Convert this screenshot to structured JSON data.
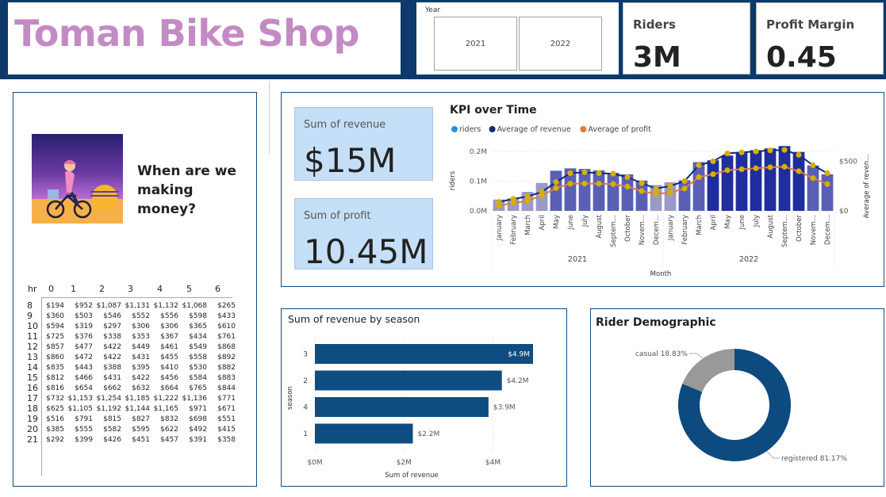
{
  "header": {
    "title": "Toman Bike Shop",
    "year_slicer": {
      "label": "Year",
      "options": [
        "2021",
        "2022"
      ]
    },
    "riders": {
      "label": "Riders",
      "value": "3M"
    },
    "profit_margin": {
      "label": "Profit Margin",
      "value": "0.45"
    }
  },
  "left_panel": {
    "heading_line1": "When are we",
    "heading_line2": "making money?",
    "illustration": "cyclist-sunset-icon",
    "heatmap": {
      "corner_label": "hr",
      "columns": [
        "0",
        "1",
        "2",
        "3",
        "4",
        "5",
        "6"
      ],
      "rows": [
        {
          "hr": "8",
          "values": [
            "$194",
            "$952",
            "$1,087",
            "$1,131",
            "$1,132",
            "$1,068",
            "$265"
          ]
        },
        {
          "hr": "9",
          "values": [
            "$360",
            "$503",
            "$546",
            "$552",
            "$556",
            "$598",
            "$433"
          ]
        },
        {
          "hr": "10",
          "values": [
            "$594",
            "$319",
            "$297",
            "$306",
            "$306",
            "$365",
            "$610"
          ]
        },
        {
          "hr": "11",
          "values": [
            "$725",
            "$376",
            "$338",
            "$353",
            "$367",
            "$434",
            "$761"
          ]
        },
        {
          "hr": "12",
          "values": [
            "$857",
            "$477",
            "$422",
            "$449",
            "$461",
            "$549",
            "$868"
          ]
        },
        {
          "hr": "13",
          "values": [
            "$860",
            "$472",
            "$422",
            "$431",
            "$455",
            "$558",
            "$892"
          ]
        },
        {
          "hr": "14",
          "values": [
            "$835",
            "$443",
            "$388",
            "$395",
            "$410",
            "$530",
            "$882"
          ]
        },
        {
          "hr": "15",
          "values": [
            "$812",
            "$466",
            "$431",
            "$422",
            "$456",
            "$584",
            "$883"
          ]
        },
        {
          "hr": "16",
          "values": [
            "$816",
            "$654",
            "$662",
            "$632",
            "$664",
            "$765",
            "$844"
          ]
        },
        {
          "hr": "17",
          "values": [
            "$732",
            "$1,153",
            "$1,254",
            "$1,185",
            "$1,222",
            "$1,136",
            "$771"
          ]
        },
        {
          "hr": "18",
          "values": [
            "$625",
            "$1,105",
            "$1,192",
            "$1,144",
            "$1,165",
            "$971",
            "$671"
          ]
        },
        {
          "hr": "19",
          "values": [
            "$516",
            "$791",
            "$815",
            "$827",
            "$832",
            "$698",
            "$551"
          ]
        },
        {
          "hr": "20",
          "values": [
            "$385",
            "$555",
            "$582",
            "$595",
            "$622",
            "$492",
            "$415"
          ]
        },
        {
          "hr": "21",
          "values": [
            "$292",
            "$399",
            "$426",
            "$451",
            "$457",
            "$391",
            "$358"
          ]
        }
      ]
    }
  },
  "revenue_card": {
    "label": "Sum of revenue",
    "value": "$15M"
  },
  "profit_card": {
    "label": "Sum of profit",
    "value": "10.45M"
  },
  "colors": {
    "topbar": "#0e3a6b",
    "title": "#c48ac4",
    "bar_dark": "#0f4c81",
    "riders_light": "#9a9ac8",
    "riders_dark": "#1f2e9c",
    "revenue_line": "#15297a",
    "profit_line": "#e07a3c",
    "marker": "#d4b000",
    "donut_registered": "#0c4a80",
    "donut_casual": "#999999"
  },
  "chart_data": [
    {
      "type": "bar",
      "title": "KPI over Time",
      "legend": [
        "riders",
        "Average of revenue",
        "Average of profit"
      ],
      "legend_placement": "top-left",
      "xlabel": "Month",
      "ylabel": "riders",
      "y2label": "Average of reven...",
      "ylim": [
        0,
        0.2
      ],
      "y_ticks": [
        "0.0M",
        "0.1M",
        "0.2M"
      ],
      "y2lim": [
        0,
        600
      ],
      "y2_ticks": [
        "$0",
        "$500"
      ],
      "groups": [
        "2021",
        "2022"
      ],
      "categories": [
        "January",
        "February",
        "March",
        "April",
        "May",
        "June",
        "July",
        "August",
        "Septem...",
        "October",
        "Novem...",
        "Decem...",
        "January",
        "February",
        "March",
        "April",
        "May",
        "June",
        "July",
        "August",
        "Septem...",
        "October",
        "Novem...",
        "Decem..."
      ],
      "series": [
        {
          "name": "riders",
          "unit": "M",
          "values": [
            0.038,
            0.042,
            0.064,
            0.094,
            0.135,
            0.143,
            0.141,
            0.136,
            0.128,
            0.123,
            0.102,
            0.087,
            0.096,
            0.103,
            0.164,
            0.17,
            0.186,
            0.196,
            0.204,
            0.21,
            0.218,
            0.198,
            0.153,
            0.123
          ]
        },
        {
          "name": "Average of revenue",
          "unit": "$",
          "values": [
            90,
            120,
            145,
            190,
            290,
            380,
            390,
            380,
            375,
            340,
            280,
            225,
            250,
            300,
            460,
            500,
            580,
            590,
            600,
            610,
            615,
            565,
            460,
            380
          ]
        },
        {
          "name": "Average of profit",
          "unit": "$",
          "values": [
            50,
            80,
            100,
            155,
            230,
            275,
            275,
            275,
            270,
            245,
            200,
            170,
            185,
            225,
            340,
            370,
            410,
            420,
            430,
            440,
            445,
            400,
            330,
            270
          ]
        }
      ]
    },
    {
      "type": "bar",
      "orientation": "horizontal",
      "title": "Sum of revenue by season",
      "xlabel": "Sum of revenue",
      "ylabel": "season",
      "categories": [
        "3",
        "2",
        "4",
        "1"
      ],
      "values": [
        4.9,
        4.2,
        3.9,
        2.2
      ],
      "value_labels": [
        "$4.9M",
        "$4.2M",
        "$3.9M",
        "$2.2M"
      ],
      "xlim": [
        0,
        4.9
      ],
      "x_ticks": [
        0,
        2,
        4
      ],
      "x_tick_labels": [
        "$0M",
        "$2M",
        "$4M"
      ]
    },
    {
      "type": "pie",
      "title": "Rider Demographic",
      "categories": [
        "casual",
        "registered"
      ],
      "values": [
        18.83,
        81.17
      ],
      "labels": [
        "casual 18.83%",
        "registered 81.17%"
      ]
    }
  ]
}
